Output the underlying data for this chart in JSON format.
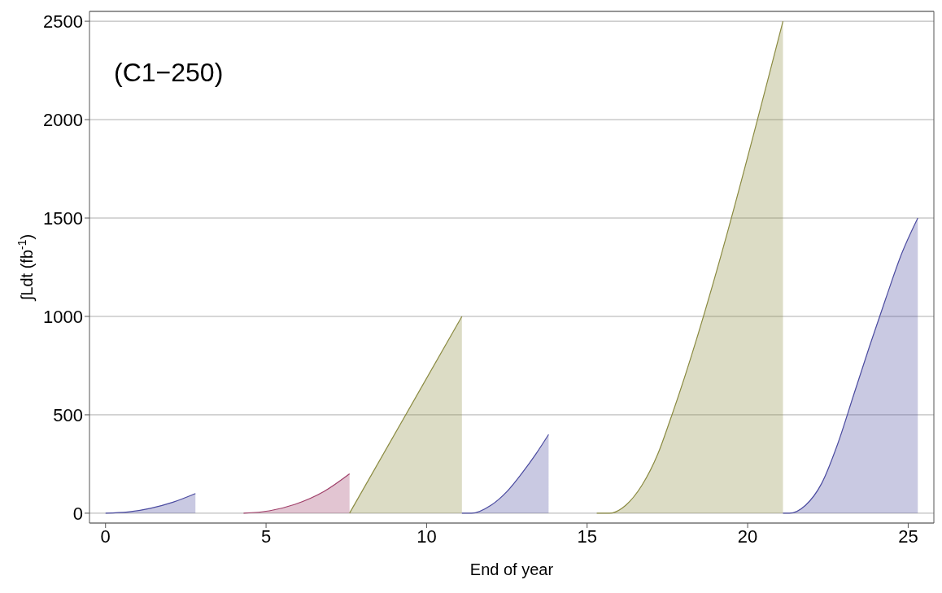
{
  "chart_data": {
    "type": "area",
    "xlabel": "End of year",
    "ylabel": "∫Ldt (fb$^{-1}$)",
    "annotations": [
      "(C1−250)"
    ],
    "xlim": [
      -0.5,
      25.8
    ],
    "xticks": [
      0,
      5,
      10,
      15,
      20,
      25
    ],
    "ylim": [
      -50,
      2550
    ],
    "yticks": [
      0,
      500,
      1000,
      1500,
      2000,
      2500
    ],
    "grid": "y",
    "series": [
      {
        "color": "#4b4ba0",
        "x": [
          0,
          0.7,
          1.4,
          2.1,
          2.8
        ],
        "values": [
          0,
          6,
          25,
          56,
          100
        ]
      },
      {
        "color": "#a0406a",
        "x": [
          4.3,
          5.1,
          5.9,
          6.8,
          7.6
        ],
        "values": [
          0,
          12,
          45,
          110,
          200
        ]
      },
      {
        "color": "#8a8a40",
        "x": [
          7.6,
          11.1
        ],
        "values": [
          0,
          1000
        ]
      },
      {
        "color": "#4b4ba0",
        "x": [
          11.1,
          11.4,
          12,
          12.5,
          13,
          13.4,
          13.8
        ],
        "values": [
          0,
          0,
          40,
          110,
          210,
          300,
          400
        ]
      },
      {
        "color": "#8a8a40",
        "x": [
          15.3,
          15.7,
          16.2,
          16.7,
          17.2,
          17.6,
          21.1
        ],
        "values": [
          0,
          0,
          40,
          140,
          300,
          480,
          2500
        ]
      },
      {
        "color": "#4b4ba0",
        "x": [
          21.1,
          21.3,
          21.8,
          22.3,
          22.8,
          23.3,
          23.8,
          24.3,
          24.8,
          25.3
        ],
        "values": [
          0,
          0,
          40,
          150,
          350,
          600,
          850,
          1090,
          1320,
          1500
        ]
      }
    ]
  }
}
